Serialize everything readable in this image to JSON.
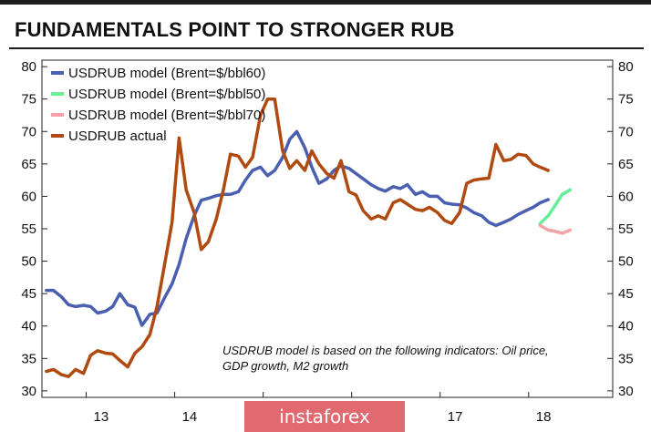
{
  "title": "FUNDAMENTALS POINT TO STRONGER RUB",
  "note_lines": [
    "USDRUB model is based on the following indicators: Oil price,",
    "GDP growth, M2 growth"
  ],
  "watermark": "instaforex",
  "colors": {
    "model": "#4a5fb0",
    "model50": "#66ee99",
    "model70": "#f4a2a6",
    "actual": "#b04a10"
  },
  "chart_data": {
    "type": "line",
    "title": "FUNDAMENTALS POINT TO STRONGER RUB",
    "xlabel": "",
    "ylabel": "",
    "ylim": [
      29,
      81
    ],
    "yticks": [
      30,
      35,
      40,
      45,
      50,
      55,
      60,
      65,
      70,
      75,
      80
    ],
    "xlim": [
      2012.5,
      2018.95
    ],
    "xticks": [
      {
        "value": 2013,
        "label": "13"
      },
      {
        "value": 2014,
        "label": "14"
      },
      {
        "value": 2015,
        "label": ""
      },
      {
        "value": 2016,
        "label": ""
      },
      {
        "value": 2017,
        "label": "17"
      },
      {
        "value": 2018,
        "label": "18"
      }
    ],
    "legend_position": "top-left",
    "grid": false,
    "series": [
      {
        "name": "USDRUB model (Brent=$/bbl60)",
        "color_key": "model",
        "x": [
          2012.55,
          2012.63,
          2012.72,
          2012.8,
          2012.88,
          2012.97,
          2013.05,
          2013.13,
          2013.22,
          2013.3,
          2013.38,
          2013.47,
          2013.55,
          2013.63,
          2013.72,
          2013.8,
          2013.88,
          2013.97,
          2014.05,
          2014.13,
          2014.22,
          2014.3,
          2014.38,
          2014.47,
          2014.55,
          2014.63,
          2014.72,
          2014.8,
          2014.88,
          2014.97,
          2015.05,
          2015.13,
          2015.22,
          2015.3,
          2015.38,
          2015.47,
          2015.55,
          2015.63,
          2015.72,
          2015.8,
          2015.88,
          2015.97,
          2016.05,
          2016.13,
          2016.22,
          2016.3,
          2016.38,
          2016.47,
          2016.55,
          2016.63,
          2016.72,
          2016.8,
          2016.88,
          2016.97,
          2017.05,
          2017.13,
          2017.22,
          2017.3,
          2017.38,
          2017.47,
          2017.55,
          2017.63,
          2017.72,
          2017.8,
          2017.88,
          2017.97,
          2018.05,
          2018.13,
          2018.22
        ],
        "y": [
          45.5,
          45.5,
          44.5,
          43.3,
          43.0,
          43.2,
          43.0,
          42.0,
          42.3,
          43.0,
          45.0,
          43.3,
          42.9,
          40.1,
          41.8,
          42.0,
          44.2,
          46.5,
          49.5,
          53.5,
          57.0,
          59.4,
          59.7,
          60.1,
          60.3,
          60.3,
          60.7,
          62.5,
          64.0,
          64.5,
          63.2,
          64.0,
          66.0,
          68.8,
          70.0,
          67.5,
          64.5,
          62.0,
          62.7,
          64.0,
          64.7,
          64.3,
          63.5,
          62.7,
          61.8,
          61.2,
          60.8,
          61.5,
          61.2,
          61.8,
          60.3,
          60.7,
          60.0,
          60.0,
          59.0,
          58.8,
          58.7,
          58.2,
          57.5,
          57.0,
          56.0,
          55.5,
          56.0,
          56.5,
          57.2,
          57.8,
          58.3,
          59.0,
          59.5
        ]
      },
      {
        "name": "USDRUB model (Brent=$/bbl50)",
        "color_key": "model50",
        "x": [
          2018.13,
          2018.22,
          2018.3,
          2018.38,
          2018.47
        ],
        "y": [
          55.8,
          57.0,
          58.6,
          60.3,
          61.0
        ]
      },
      {
        "name": "USDRUB model (Brent=$/bbl70)",
        "color_key": "model70",
        "x": [
          2018.13,
          2018.22,
          2018.3,
          2018.38,
          2018.47
        ],
        "y": [
          55.5,
          54.8,
          54.6,
          54.3,
          54.8
        ]
      },
      {
        "name": "USDRUB actual",
        "color_key": "actual",
        "x": [
          2012.55,
          2012.63,
          2012.72,
          2012.8,
          2012.88,
          2012.97,
          2013.05,
          2013.13,
          2013.22,
          2013.3,
          2013.38,
          2013.47,
          2013.55,
          2013.63,
          2013.72,
          2013.8,
          2013.88,
          2013.97,
          2014.05,
          2014.13,
          2014.22,
          2014.3,
          2014.38,
          2014.47,
          2014.55,
          2014.63,
          2014.72,
          2014.8,
          2014.88,
          2014.97,
          2015.05,
          2015.13,
          2015.22,
          2015.3,
          2015.38,
          2015.47,
          2015.55,
          2015.63,
          2015.72,
          2015.8,
          2015.88,
          2015.97,
          2016.05,
          2016.13,
          2016.22,
          2016.3,
          2016.38,
          2016.47,
          2016.55,
          2016.63,
          2016.72,
          2016.8,
          2016.88,
          2016.97,
          2017.05,
          2017.13,
          2017.22,
          2017.3,
          2017.38,
          2017.47,
          2017.55,
          2017.63,
          2017.72,
          2017.8,
          2017.88,
          2017.97,
          2018.05,
          2018.13,
          2018.22
        ],
        "y": [
          33.0,
          33.3,
          32.5,
          32.2,
          33.3,
          32.7,
          35.5,
          36.2,
          35.8,
          35.7,
          34.7,
          33.7,
          35.8,
          36.8,
          38.7,
          43.0,
          49.0,
          56.0,
          69.0,
          61.0,
          57.5,
          51.8,
          53.0,
          56.5,
          61.0,
          66.5,
          66.2,
          64.5,
          66.0,
          72.5,
          75.0,
          75.0,
          67.0,
          64.3,
          65.5,
          64.0,
          67.0,
          65.0,
          63.5,
          62.8,
          65.5,
          60.7,
          60.2,
          57.8,
          56.5,
          57.0,
          56.5,
          59.0,
          59.5,
          58.8,
          58.0,
          57.8,
          58.3,
          57.5,
          56.3,
          55.8,
          57.5,
          62.0,
          62.5,
          62.7,
          62.8,
          68.0,
          65.5,
          65.7,
          66.5,
          66.3,
          65.0,
          64.5,
          64.0
        ]
      }
    ]
  }
}
